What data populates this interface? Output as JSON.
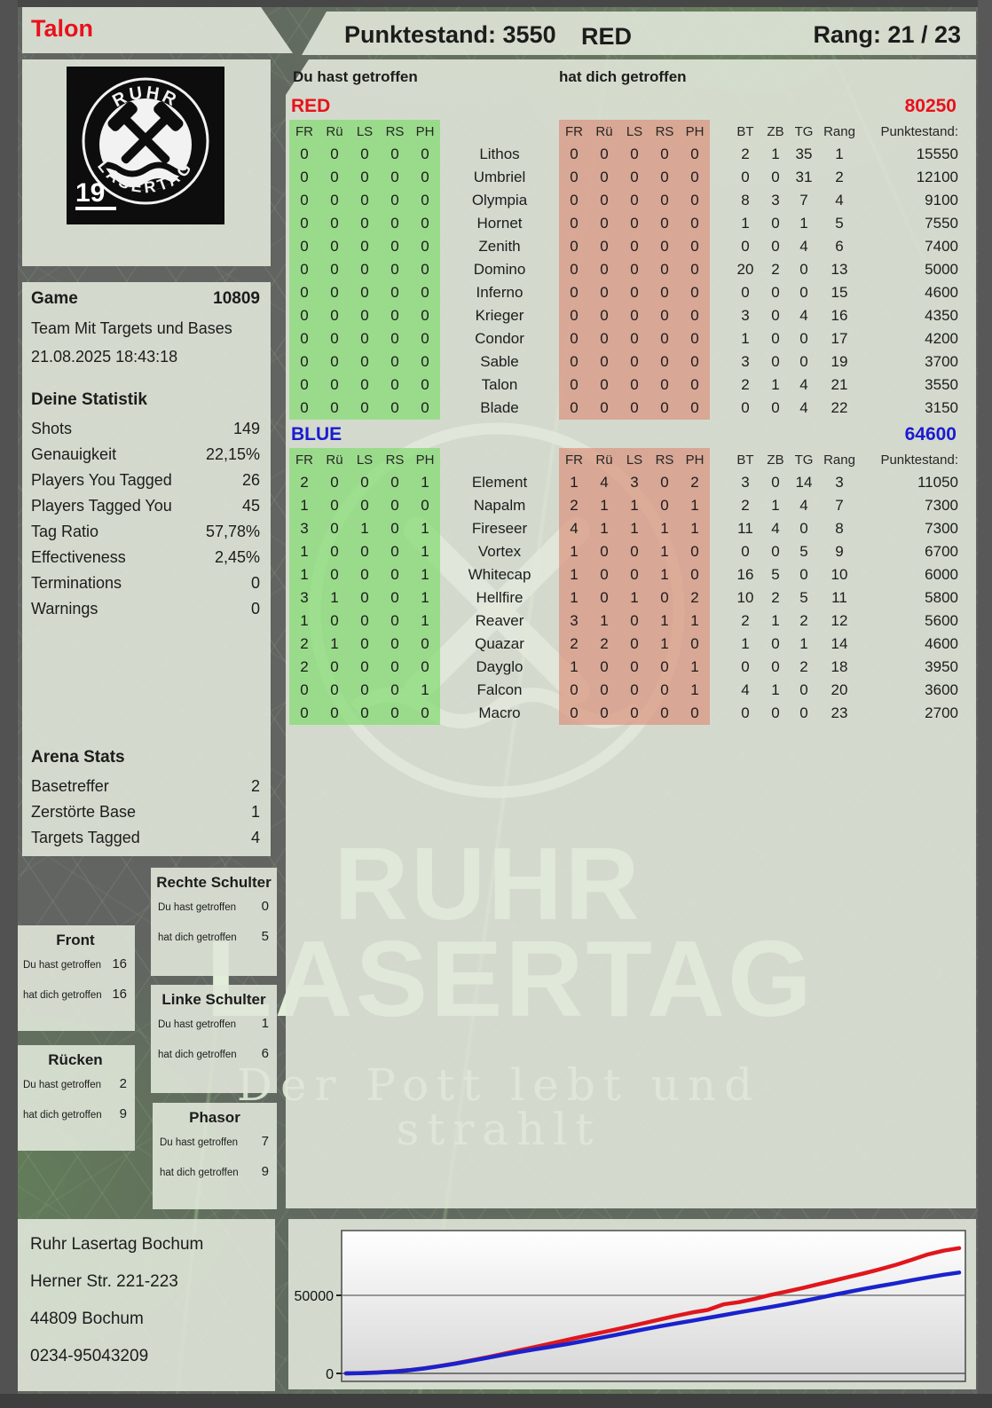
{
  "header": {
    "player_name": "Talon",
    "score": "Punktestand: 3550",
    "team": "RED",
    "rank": "Rang: 21 / 23"
  },
  "logo": {
    "top": "RUHR",
    "bottom": "LASERTAG",
    "number": "19"
  },
  "watermark": {
    "line1": "RUHR",
    "line2": "LASERTAG",
    "tagline": "Der Pott lebt und strahlt"
  },
  "game": {
    "label": "Game",
    "number": "10809",
    "mode": "Team Mit Targets und Bases",
    "datetime": "21.08.2025 18:43:18"
  },
  "stats": {
    "title": "Deine Statistik",
    "rows": [
      {
        "label": "Shots",
        "value": "149"
      },
      {
        "label": "Genauigkeit",
        "value": "22,15%"
      },
      {
        "label": "Players You Tagged",
        "value": "26"
      },
      {
        "label": "Players Tagged You",
        "value": "45"
      },
      {
        "label": "Tag Ratio",
        "value": "57,78%"
      },
      {
        "label": "Effectiveness",
        "value": "2,45%"
      },
      {
        "label": "Terminations",
        "value": "0"
      },
      {
        "label": "Warnings",
        "value": "0"
      }
    ]
  },
  "arena": {
    "title": "Arena Stats",
    "rows": [
      {
        "label": "Basetreffer",
        "value": "2"
      },
      {
        "label": "Zerstörte Base",
        "value": "1"
      },
      {
        "label": "Targets Tagged",
        "value": "4"
      }
    ]
  },
  "hit_labels": {
    "you": "Du hast getroffen",
    "them": "hat dich getroffen"
  },
  "hit_boxes": [
    {
      "title": "Rechte Schulter",
      "you": "0",
      "them": "5"
    },
    {
      "title": "Front",
      "you": "16",
      "them": "16"
    },
    {
      "title": "Linke Schulter",
      "you": "1",
      "them": "6"
    },
    {
      "title": "Rücken",
      "you": "2",
      "them": "9"
    },
    {
      "title": "Phasor",
      "you": "7",
      "them": "9"
    }
  ],
  "table": {
    "caption_you": "Du hast getroffen",
    "caption_them": "hat dich getroffen",
    "body_cols": [
      "FR",
      "Rü",
      "LS",
      "RS",
      "PH"
    ],
    "tail_cols": [
      "BT",
      "ZB",
      "TG",
      "Rang",
      "Punktestand:"
    ]
  },
  "teams": [
    {
      "name": "RED",
      "total": "80250",
      "color": "#e8111c",
      "players": [
        {
          "name": "Lithos",
          "you": [
            0,
            0,
            0,
            0,
            0
          ],
          "them": [
            0,
            0,
            0,
            0,
            0
          ],
          "bt": 2,
          "zb": 1,
          "tg": 35,
          "rang": 1,
          "score": "15550"
        },
        {
          "name": "Umbriel",
          "you": [
            0,
            0,
            0,
            0,
            0
          ],
          "them": [
            0,
            0,
            0,
            0,
            0
          ],
          "bt": 0,
          "zb": 0,
          "tg": 31,
          "rang": 2,
          "score": "12100"
        },
        {
          "name": "Olympia",
          "you": [
            0,
            0,
            0,
            0,
            0
          ],
          "them": [
            0,
            0,
            0,
            0,
            0
          ],
          "bt": 8,
          "zb": 3,
          "tg": 7,
          "rang": 4,
          "score": "9100"
        },
        {
          "name": "Hornet",
          "you": [
            0,
            0,
            0,
            0,
            0
          ],
          "them": [
            0,
            0,
            0,
            0,
            0
          ],
          "bt": 1,
          "zb": 0,
          "tg": 1,
          "rang": 5,
          "score": "7550"
        },
        {
          "name": "Zenith",
          "you": [
            0,
            0,
            0,
            0,
            0
          ],
          "them": [
            0,
            0,
            0,
            0,
            0
          ],
          "bt": 0,
          "zb": 0,
          "tg": 4,
          "rang": 6,
          "score": "7400"
        },
        {
          "name": "Domino",
          "you": [
            0,
            0,
            0,
            0,
            0
          ],
          "them": [
            0,
            0,
            0,
            0,
            0
          ],
          "bt": 20,
          "zb": 2,
          "tg": 0,
          "rang": 13,
          "score": "5000"
        },
        {
          "name": "Inferno",
          "you": [
            0,
            0,
            0,
            0,
            0
          ],
          "them": [
            0,
            0,
            0,
            0,
            0
          ],
          "bt": 0,
          "zb": 0,
          "tg": 0,
          "rang": 15,
          "score": "4600"
        },
        {
          "name": "Krieger",
          "you": [
            0,
            0,
            0,
            0,
            0
          ],
          "them": [
            0,
            0,
            0,
            0,
            0
          ],
          "bt": 3,
          "zb": 0,
          "tg": 4,
          "rang": 16,
          "score": "4350"
        },
        {
          "name": "Condor",
          "you": [
            0,
            0,
            0,
            0,
            0
          ],
          "them": [
            0,
            0,
            0,
            0,
            0
          ],
          "bt": 1,
          "zb": 0,
          "tg": 0,
          "rang": 17,
          "score": "4200"
        },
        {
          "name": "Sable",
          "you": [
            0,
            0,
            0,
            0,
            0
          ],
          "them": [
            0,
            0,
            0,
            0,
            0
          ],
          "bt": 3,
          "zb": 0,
          "tg": 0,
          "rang": 19,
          "score": "3700"
        },
        {
          "name": "Talon",
          "you": [
            0,
            0,
            0,
            0,
            0
          ],
          "them": [
            0,
            0,
            0,
            0,
            0
          ],
          "bt": 2,
          "zb": 1,
          "tg": 4,
          "rang": 21,
          "score": "3550"
        },
        {
          "name": "Blade",
          "you": [
            0,
            0,
            0,
            0,
            0
          ],
          "them": [
            0,
            0,
            0,
            0,
            0
          ],
          "bt": 0,
          "zb": 0,
          "tg": 4,
          "rang": 22,
          "score": "3150"
        }
      ]
    },
    {
      "name": "BLUE",
      "total": "64600",
      "color": "#1b1bd0",
      "players": [
        {
          "name": "Element",
          "you": [
            2,
            0,
            0,
            0,
            1
          ],
          "them": [
            1,
            4,
            3,
            0,
            2
          ],
          "bt": 3,
          "zb": 0,
          "tg": 14,
          "rang": 3,
          "score": "11050"
        },
        {
          "name": "Napalm",
          "you": [
            1,
            0,
            0,
            0,
            0
          ],
          "them": [
            2,
            1,
            1,
            0,
            1
          ],
          "bt": 2,
          "zb": 1,
          "tg": 4,
          "rang": 7,
          "score": "7300"
        },
        {
          "name": "Fireseer",
          "you": [
            3,
            0,
            1,
            0,
            1
          ],
          "them": [
            4,
            1,
            1,
            1,
            1
          ],
          "bt": 11,
          "zb": 4,
          "tg": 0,
          "rang": 8,
          "score": "7300"
        },
        {
          "name": "Vortex",
          "you": [
            1,
            0,
            0,
            0,
            1
          ],
          "them": [
            1,
            0,
            0,
            1,
            0
          ],
          "bt": 0,
          "zb": 0,
          "tg": 5,
          "rang": 9,
          "score": "6700"
        },
        {
          "name": "Whitecap",
          "you": [
            1,
            0,
            0,
            0,
            1
          ],
          "them": [
            1,
            0,
            0,
            1,
            0
          ],
          "bt": 16,
          "zb": 5,
          "tg": 0,
          "rang": 10,
          "score": "6000"
        },
        {
          "name": "Hellfire",
          "you": [
            3,
            1,
            0,
            0,
            1
          ],
          "them": [
            1,
            0,
            1,
            0,
            2
          ],
          "bt": 10,
          "zb": 2,
          "tg": 5,
          "rang": 11,
          "score": "5800"
        },
        {
          "name": "Reaver",
          "you": [
            1,
            0,
            0,
            0,
            1
          ],
          "them": [
            3,
            1,
            0,
            1,
            1
          ],
          "bt": 2,
          "zb": 1,
          "tg": 2,
          "rang": 12,
          "score": "5600"
        },
        {
          "name": "Quazar",
          "you": [
            2,
            1,
            0,
            0,
            0
          ],
          "them": [
            2,
            2,
            0,
            1,
            0
          ],
          "bt": 1,
          "zb": 0,
          "tg": 1,
          "rang": 14,
          "score": "4600"
        },
        {
          "name": "Dayglo",
          "you": [
            2,
            0,
            0,
            0,
            0
          ],
          "them": [
            1,
            0,
            0,
            0,
            1
          ],
          "bt": 0,
          "zb": 0,
          "tg": 2,
          "rang": 18,
          "score": "3950"
        },
        {
          "name": "Falcon",
          "you": [
            0,
            0,
            0,
            0,
            1
          ],
          "them": [
            0,
            0,
            0,
            0,
            1
          ],
          "bt": 4,
          "zb": 1,
          "tg": 0,
          "rang": 20,
          "score": "3600"
        },
        {
          "name": "Macro",
          "you": [
            0,
            0,
            0,
            0,
            0
          ],
          "them": [
            0,
            0,
            0,
            0,
            0
          ],
          "bt": 0,
          "zb": 0,
          "tg": 0,
          "rang": 23,
          "score": "2700"
        }
      ]
    }
  ],
  "address": {
    "lines": [
      "Ruhr Lasertag Bochum",
      "Herner Str. 221-223",
      "44809 Bochum",
      "0234-95043209"
    ]
  },
  "chart_data": {
    "type": "line",
    "title": "",
    "xlabel": "",
    "ylabel": "",
    "yticks": [
      0,
      50000
    ],
    "ylim": [
      0,
      90000
    ],
    "grid": true,
    "legend": "none",
    "series": [
      {
        "name": "RED",
        "color": "#e0161d",
        "values": [
          0,
          200,
          600,
          1200,
          2100,
          3300,
          4800,
          6500,
          8400,
          10400,
          12500,
          14700,
          16900,
          19100,
          21300,
          23500,
          25700,
          27800,
          30000,
          32300,
          34600,
          36900,
          39000,
          40600,
          44200,
          45600,
          47800,
          50200,
          52400,
          54600,
          57000,
          59400,
          61800,
          64200,
          66800,
          69600,
          72800,
          76200,
          78600,
          80250
        ]
      },
      {
        "name": "BLUE",
        "color": "#1a22cc",
        "values": [
          0,
          150,
          500,
          1100,
          2000,
          3200,
          4700,
          6300,
          8100,
          10000,
          11900,
          13700,
          15400,
          17000,
          18700,
          20500,
          22400,
          24300,
          26300,
          28300,
          30200,
          32000,
          33700,
          35500,
          37300,
          39100,
          40800,
          42500,
          44300,
          46200,
          48200,
          50300,
          52300,
          54200,
          56000,
          57800,
          59700,
          61500,
          63200,
          64600
        ]
      }
    ]
  }
}
